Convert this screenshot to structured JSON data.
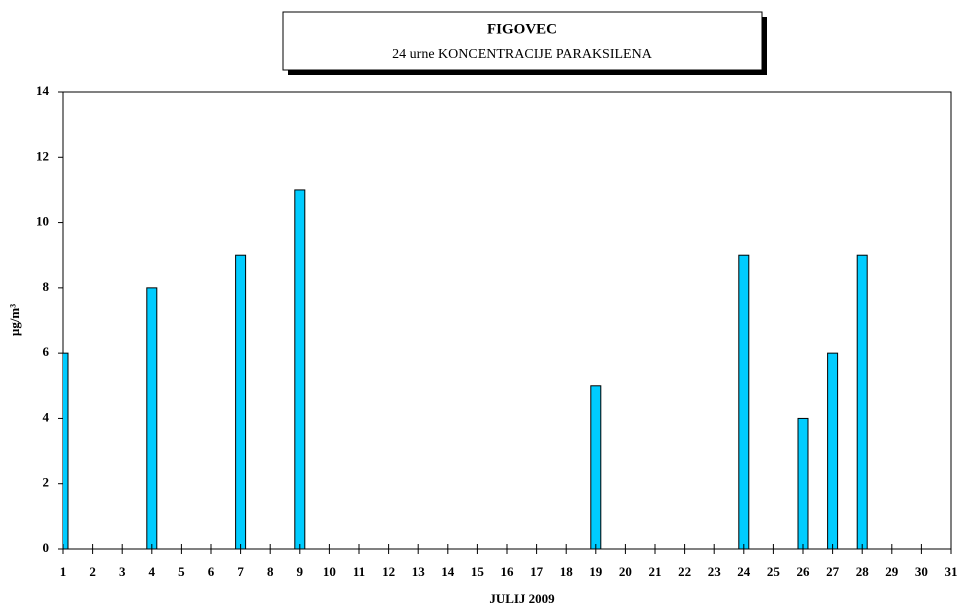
{
  "chart_data": {
    "type": "bar",
    "title": "FIGOVEC",
    "subtitle": "24 urne KONCENTRACIJE PARAKSILENA",
    "x_label": "JULIJ 2009",
    "y_label": "µg/m³",
    "x": [
      1,
      4,
      7,
      9,
      19,
      24,
      26,
      27,
      28
    ],
    "values": [
      6,
      8,
      9,
      11,
      5,
      9,
      4,
      6,
      9
    ],
    "color": "#00ccff",
    "xlim": [
      1,
      31
    ],
    "xticks": [
      1,
      2,
      3,
      4,
      5,
      6,
      7,
      8,
      9,
      10,
      11,
      12,
      13,
      14,
      15,
      16,
      17,
      18,
      19,
      20,
      21,
      22,
      23,
      24,
      25,
      26,
      27,
      28,
      29,
      30,
      31
    ],
    "ylim": [
      0,
      14
    ],
    "yticks": [
      0,
      2,
      4,
      6,
      8,
      10,
      12,
      14
    ]
  }
}
